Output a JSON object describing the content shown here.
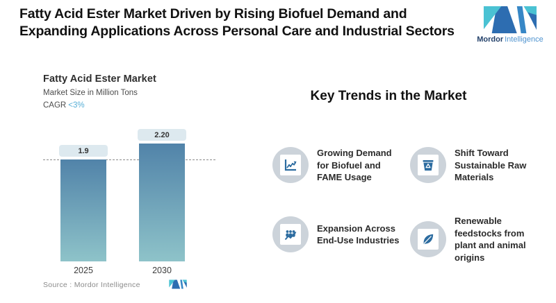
{
  "header": {
    "title": "Fatty Acid Ester Market Driven by Rising Biofuel Demand and Expanding Applications Across Personal Care and Industrial Sectors",
    "brand": {
      "bold": "Mordor",
      "light": "Intelligence"
    }
  },
  "chart": {
    "title": "Fatty Acid Ester Market",
    "subtitle": "Market Size in Million Tons",
    "cagr_label": "CAGR",
    "cagr_value": "<3%",
    "source": "Source :  Mordor Intelligence"
  },
  "chart_data": {
    "type": "bar",
    "title": "Fatty Acid Ester Market",
    "subtitle": "Market Size in Million Tons",
    "cagr": "<3%",
    "categories": [
      "2025",
      "2030"
    ],
    "values": [
      1.9,
      2.2
    ],
    "value_labels": [
      "1.9",
      "2.20"
    ],
    "ylim": [
      0,
      2.4
    ],
    "reference_line": {
      "value": 1.9,
      "style": "dashed"
    },
    "bar_gradient_top": "#5183a9",
    "bar_gradient_bottom": "#8ec3c9",
    "label_pill_bg": "#dde9ef",
    "grid": false,
    "legend": "none"
  },
  "trends": {
    "heading": "Key Trends in the Market",
    "items": [
      {
        "icon": "growth-chart-icon",
        "text": "Growing Demand for Biofuel and FAME Usage"
      },
      {
        "icon": "recycle-bin-icon",
        "text": "Shift Toward Sustainable Raw Materials"
      },
      {
        "icon": "people-growth-icon",
        "text": "Expansion Across End-Use Industries"
      },
      {
        "icon": "leaf-icon",
        "text": "Renewable feedstocks from plant and animal origins"
      }
    ]
  },
  "colors": {
    "accent_teal": "#4ac2d3",
    "brand_blue_dark": "#2d6db1",
    "brand_blue_mid": "#3787c6",
    "cagr_value": "#56aed6",
    "icon_circle_bg": "#ccd3da",
    "icon_glyph": "#2c6ca0",
    "dashed_line": "#8a8a8a",
    "title_text": "#111111"
  }
}
